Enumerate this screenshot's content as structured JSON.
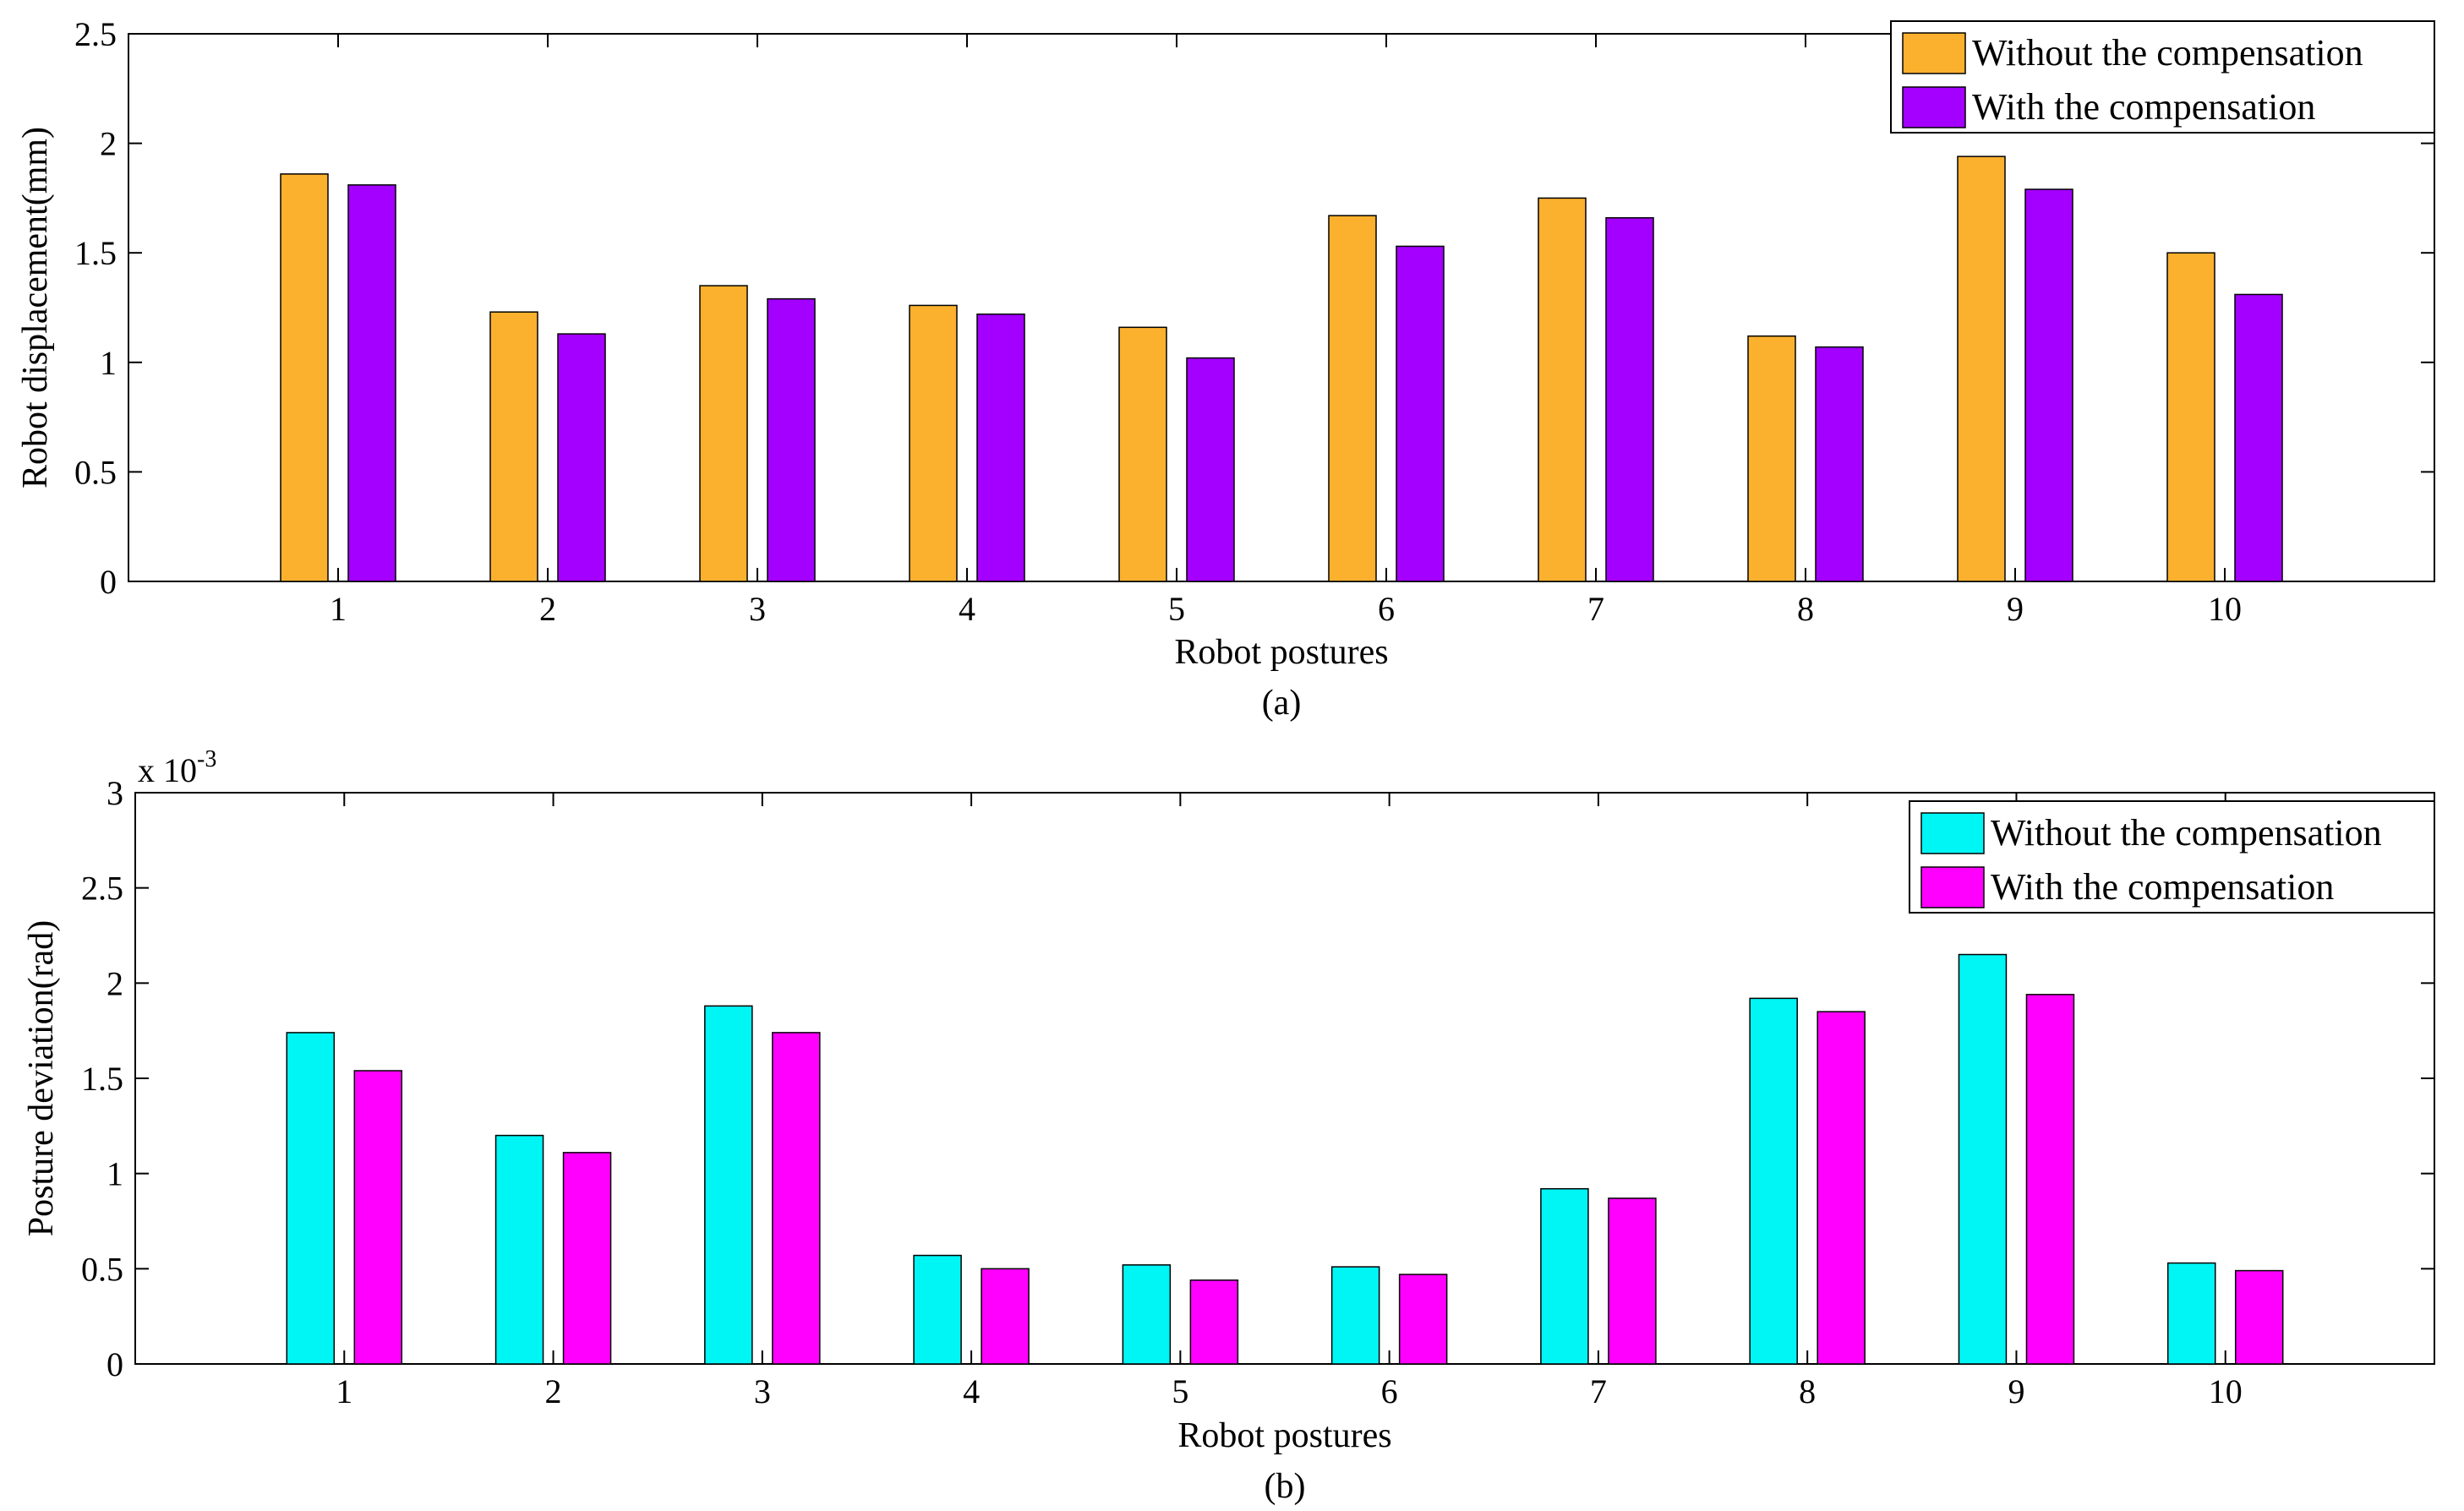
{
  "charts": [
    {
      "type": "bar",
      "categories": [
        "1",
        "2",
        "3",
        "4",
        "5",
        "6",
        "7",
        "8",
        "9",
        "10"
      ],
      "series": [
        {
          "name": "Without the compensation",
          "values": [
            1.86,
            1.23,
            1.35,
            1.26,
            1.16,
            1.67,
            1.75,
            1.12,
            1.94,
            1.5
          ]
        },
        {
          "name": "With the compensation",
          "values": [
            1.81,
            1.13,
            1.29,
            1.22,
            1.02,
            1.53,
            1.66,
            1.07,
            1.79,
            1.31
          ]
        }
      ],
      "colors": [
        "#FBB12E",
        "#A300FF"
      ],
      "xlabel": "Robot postures",
      "ylabel": "Robot displacement(mm)",
      "ylim": [
        0,
        2.5
      ],
      "yticks": [
        "0",
        "0.5",
        "1",
        "1.5",
        "2",
        "2.5"
      ],
      "subcaption": "(a)",
      "exponent_label": "",
      "exponent_power": "",
      "legend_position": "top-right",
      "grid": false
    },
    {
      "type": "bar",
      "categories": [
        "1",
        "2",
        "3",
        "4",
        "5",
        "6",
        "7",
        "8",
        "9",
        "10"
      ],
      "series": [
        {
          "name": "Without the compensation",
          "values": [
            1.74,
            1.2,
            1.88,
            0.57,
            0.52,
            0.51,
            0.92,
            1.92,
            2.15,
            0.53
          ]
        },
        {
          "name": "With the compensation",
          "values": [
            1.54,
            1.11,
            1.74,
            0.5,
            0.44,
            0.47,
            0.87,
            1.85,
            1.94,
            0.49
          ]
        }
      ],
      "colors": [
        "#00F5F5",
        "#FF00FF"
      ],
      "xlabel": "Robot postures",
      "ylabel": "Posture deviation(rad)",
      "ylim": [
        0,
        3
      ],
      "yticks": [
        "0",
        "0.5",
        "1",
        "1.5",
        "2",
        "2.5",
        "3"
      ],
      "subcaption": "(b)",
      "exponent_label": "x 10",
      "exponent_power": "-3",
      "legend_position": "top-right",
      "grid": false
    }
  ]
}
